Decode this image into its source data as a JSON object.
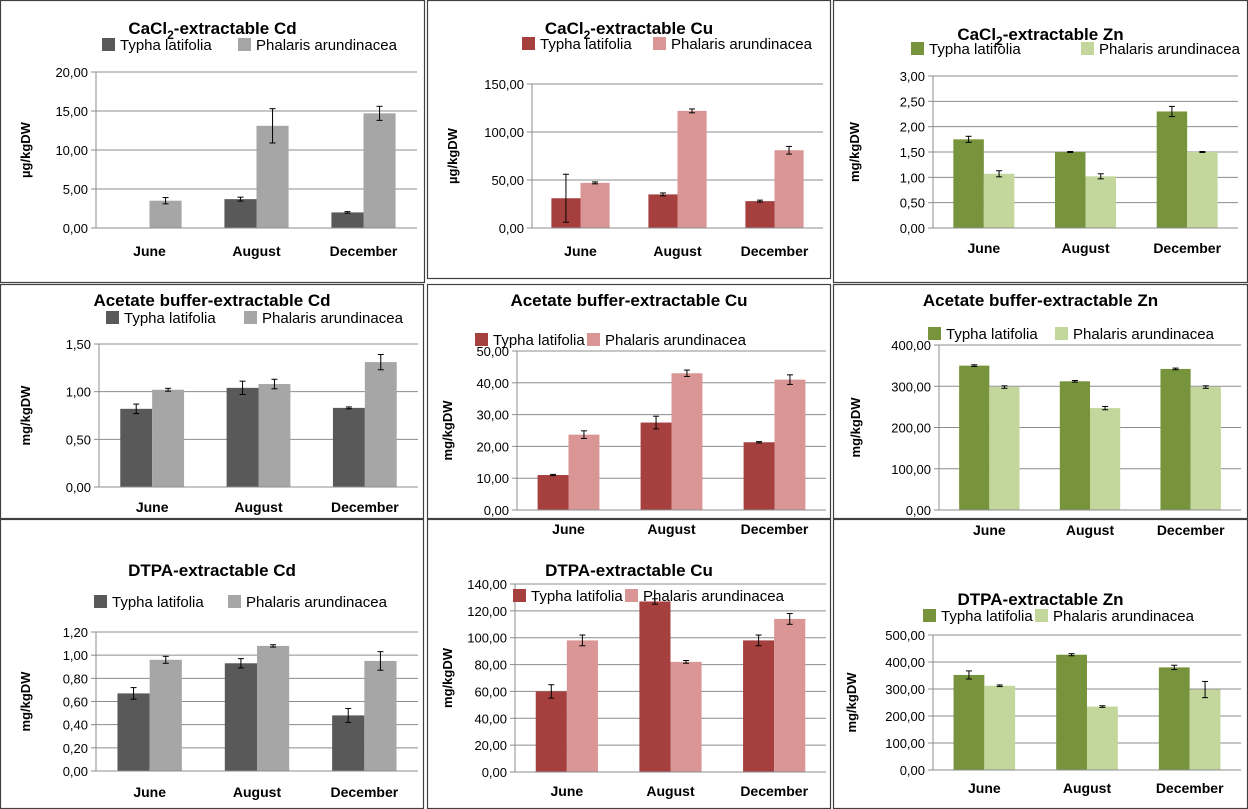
{
  "chart_data": [
    {
      "type": "bar",
      "title": "CaCl",
      "title_sub": "2",
      "title_rest": "-extractable Cd",
      "ylabel": "µg/kgDW",
      "ylim": [
        0,
        20
      ],
      "yticks": [
        "0,00",
        "5,00",
        "10,00",
        "15,00",
        "20,00"
      ],
      "categories": [
        "June",
        "August",
        "December"
      ],
      "series": [
        {
          "name": "Typha latifolia",
          "color": "#595959",
          "values": [
            0,
            3.7,
            2.0
          ],
          "errors": [
            0,
            0.25,
            0.1
          ]
        },
        {
          "name": "Phalaris arundinacea",
          "color": "#a6a6a6",
          "values": [
            3.5,
            13.1,
            14.7
          ],
          "errors": [
            0.4,
            2.2,
            0.9
          ]
        }
      ],
      "grid": true,
      "legend": "top"
    },
    {
      "type": "bar",
      "title": "CaCl",
      "title_sub": "2",
      "title_rest": "-extractable Cu",
      "ylabel": "µg/kgDW",
      "ylim": [
        0,
        150
      ],
      "yticks": [
        "0,00",
        "50,00",
        "100,00",
        "150,00"
      ],
      "categories": [
        "June",
        "August",
        "December"
      ],
      "series": [
        {
          "name": "Typha latifolia",
          "color": "#a5403f",
          "values": [
            31,
            35,
            28
          ],
          "errors": [
            25,
            1.5,
            1
          ]
        },
        {
          "name": "Phalaris arundinacea",
          "color": "#d99694",
          "values": [
            47,
            122,
            81
          ],
          "errors": [
            1,
            2,
            4
          ]
        }
      ],
      "grid": true,
      "legend": "top"
    },
    {
      "type": "bar",
      "title": "CaCl",
      "title_sub": "2",
      "title_rest": "-extractable Zn",
      "ylabel": "mg/kgDW",
      "ylim": [
        0,
        3
      ],
      "yticks": [
        "0,00",
        "0,50",
        "1,00",
        "1,50",
        "2,00",
        "2,50",
        "3,00"
      ],
      "categories": [
        "June",
        "August",
        "December"
      ],
      "series": [
        {
          "name": "Typha latifolia",
          "color": "#77933c",
          "values": [
            1.75,
            1.5,
            2.3
          ],
          "errors": [
            0.06,
            0.01,
            0.1
          ]
        },
        {
          "name": "Phalaris arundinacea",
          "color": "#c3d69b",
          "values": [
            1.07,
            1.02,
            1.5
          ],
          "errors": [
            0.06,
            0.05,
            0.01
          ]
        }
      ],
      "grid": true,
      "legend": "top"
    },
    {
      "type": "bar",
      "title": "Acetate buffer-extractable Cd",
      "ylabel": "mg/kgDW",
      "ylim": [
        0,
        1.5
      ],
      "yticks": [
        "0,00",
        "0,50",
        "1,00",
        "1,50"
      ],
      "categories": [
        "June",
        "August",
        "December"
      ],
      "series": [
        {
          "name": "Typha latifolia",
          "color": "#595959",
          "values": [
            0.82,
            1.04,
            0.83
          ],
          "errors": [
            0.05,
            0.07,
            0.01
          ]
        },
        {
          "name": "Phalaris arundinacea",
          "color": "#a6a6a6",
          "values": [
            1.02,
            1.08,
            1.31
          ],
          "errors": [
            0.015,
            0.05,
            0.08
          ]
        }
      ],
      "grid": true,
      "legend": "top"
    },
    {
      "type": "bar",
      "title": "Acetate buffer-extractable Cu",
      "ylabel": "mg/kgDW",
      "ylim": [
        0,
        50
      ],
      "yticks": [
        "0,00",
        "10,00",
        "20,00",
        "30,00",
        "40,00",
        "50,00"
      ],
      "categories": [
        "June",
        "August",
        "December"
      ],
      "series": [
        {
          "name": "Typha latifolia",
          "color": "#a5403f",
          "values": [
            11,
            27.5,
            21.3
          ],
          "errors": [
            0.2,
            2,
            0.2
          ]
        },
        {
          "name": "Phalaris arundinacea",
          "color": "#d99694",
          "values": [
            23.7,
            43,
            41
          ],
          "errors": [
            1.2,
            1,
            1.5
          ]
        }
      ],
      "grid": true,
      "legend": "top"
    },
    {
      "type": "bar",
      "title": "Acetate buffer-extractable Zn",
      "ylabel": "mg/kgDW",
      "ylim": [
        0,
        400
      ],
      "yticks": [
        "0,00",
        "100,00",
        "200,00",
        "300,00",
        "400,00"
      ],
      "categories": [
        "June",
        "August",
        "December"
      ],
      "series": [
        {
          "name": "Typha latifolia",
          "color": "#77933c",
          "values": [
            350,
            312,
            342
          ],
          "errors": [
            2,
            2,
            2
          ]
        },
        {
          "name": "Phalaris arundinacea",
          "color": "#c3d69b",
          "values": [
            298,
            247,
            298
          ],
          "errors": [
            3,
            4,
            3
          ]
        }
      ],
      "grid": true,
      "legend": "top"
    },
    {
      "type": "bar",
      "title": "DTPA-extractable Cd",
      "ylabel": "mg/kgDW",
      "ylim": [
        0,
        1.2
      ],
      "yticks": [
        "0,00",
        "0,20",
        "0,40",
        "0,60",
        "0,80",
        "1,00",
        "1,20"
      ],
      "categories": [
        "June",
        "August",
        "December"
      ],
      "series": [
        {
          "name": "Typha latifolia",
          "color": "#595959",
          "values": [
            0.67,
            0.93,
            0.48
          ],
          "errors": [
            0.05,
            0.04,
            0.06
          ]
        },
        {
          "name": "Phalaris arundinacea",
          "color": "#a6a6a6",
          "values": [
            0.96,
            1.08,
            0.95
          ],
          "errors": [
            0.03,
            0.01,
            0.08
          ]
        }
      ],
      "grid": true,
      "legend": "top"
    },
    {
      "type": "bar",
      "title": "DTPA-extractable Cu",
      "ylabel": "mg/kgDW",
      "ylim": [
        0,
        140
      ],
      "yticks": [
        "0,00",
        "20,00",
        "40,00",
        "60,00",
        "80,00",
        "100,00",
        "120,00",
        "140,00"
      ],
      "categories": [
        "June",
        "August",
        "December"
      ],
      "series": [
        {
          "name": "Typha latifolia",
          "color": "#a5403f",
          "values": [
            60,
            127,
            98
          ],
          "errors": [
            5,
            2,
            4
          ]
        },
        {
          "name": "Phalaris arundinacea",
          "color": "#d99694",
          "values": [
            98,
            82,
            114
          ],
          "errors": [
            4,
            1,
            4
          ]
        }
      ],
      "grid": true,
      "legend": "top"
    },
    {
      "type": "bar",
      "title": "DTPA-extractable Zn",
      "ylabel": "mg/kgDW",
      "ylim": [
        0,
        500
      ],
      "yticks": [
        "0,00",
        "100,00",
        "200,00",
        "300,00",
        "400,00",
        "500,00"
      ],
      "categories": [
        "June",
        "August",
        "December"
      ],
      "series": [
        {
          "name": "Typha latifolia",
          "color": "#77933c",
          "values": [
            352,
            427,
            380
          ],
          "errors": [
            15,
            4,
            8
          ]
        },
        {
          "name": "Phalaris arundinacea",
          "color": "#c3d69b",
          "values": [
            312,
            235,
            298
          ],
          "errors": [
            3,
            3,
            30
          ]
        }
      ],
      "grid": true,
      "legend": "top"
    }
  ]
}
